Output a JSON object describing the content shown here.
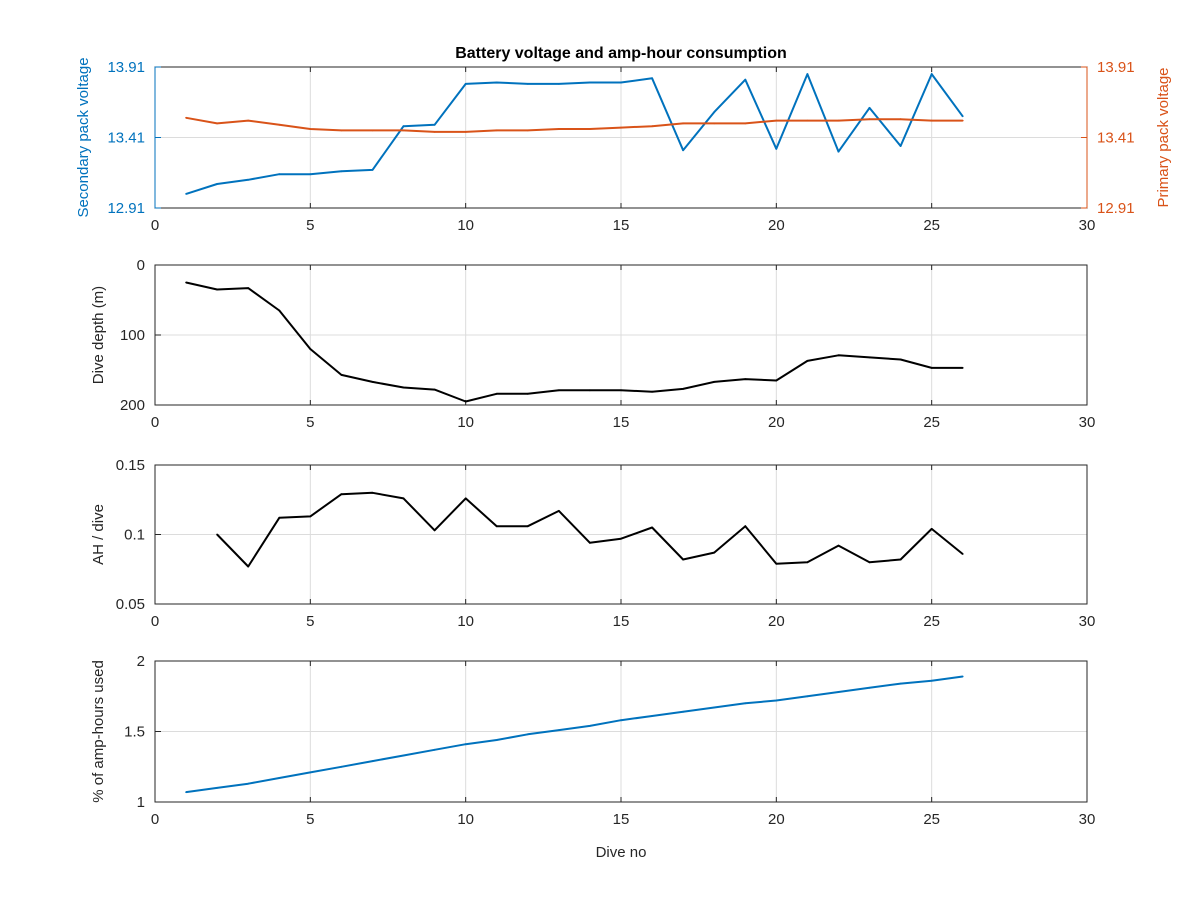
{
  "figure": {
    "title": "Battery voltage and amp-hour consumption",
    "xlabel": "Dive no"
  },
  "colors": {
    "secondary": "#0072BD",
    "primary": "#D95319",
    "depth": "#000000",
    "ah": "#000000",
    "percent": "#0072BD",
    "grid": "#dcdcdc",
    "axis": "#262626"
  },
  "chart_data": [
    {
      "type": "line",
      "title": "Battery voltage and amp-hour consumption",
      "xlabel": "",
      "xlim": [
        0,
        30
      ],
      "xticks": [
        0,
        5,
        10,
        15,
        20,
        25,
        30
      ],
      "ylabel": "Secondary pack voltage",
      "ylim": [
        12.91,
        13.91
      ],
      "yticks": [
        12.91,
        13.41,
        13.91
      ],
      "y2label": "Primary pack voltage",
      "y2lim": [
        12.91,
        13.91
      ],
      "y2ticks": [
        12.91,
        13.41,
        13.91
      ],
      "grid": true,
      "series": [
        {
          "axis": "left",
          "x": [
            1,
            2,
            3,
            4,
            5,
            6,
            7,
            8,
            9,
            10,
            11,
            12,
            13,
            14,
            15,
            16,
            17,
            18,
            19,
            20,
            21,
            22,
            23,
            24,
            25,
            26
          ],
          "values": [
            13.01,
            13.08,
            13.11,
            13.15,
            13.15,
            13.17,
            13.18,
            13.49,
            13.5,
            13.79,
            13.8,
            13.79,
            13.79,
            13.8,
            13.8,
            13.83,
            13.32,
            13.59,
            13.82,
            13.33,
            13.86,
            13.31,
            13.62,
            13.35,
            13.86,
            13.56
          ]
        },
        {
          "axis": "right",
          "x": [
            1,
            2,
            3,
            4,
            5,
            6,
            7,
            8,
            9,
            10,
            11,
            12,
            13,
            14,
            15,
            16,
            17,
            18,
            19,
            20,
            21,
            22,
            23,
            24,
            25,
            26
          ],
          "values": [
            13.55,
            13.51,
            13.53,
            13.5,
            13.47,
            13.46,
            13.46,
            13.46,
            13.45,
            13.45,
            13.46,
            13.46,
            13.47,
            13.47,
            13.48,
            13.49,
            13.51,
            13.51,
            13.51,
            13.53,
            13.53,
            13.53,
            13.54,
            13.54,
            13.53,
            13.53
          ]
        }
      ]
    },
    {
      "type": "line",
      "xlabel": "",
      "xlim": [
        0,
        30
      ],
      "xticks": [
        0,
        5,
        10,
        15,
        20,
        25,
        30
      ],
      "ylabel": "Dive depth (m)",
      "ylim": [
        0,
        200
      ],
      "yticks": [
        0,
        100,
        200
      ],
      "y_reversed": true,
      "grid": true,
      "series": [
        {
          "x": [
            1,
            2,
            3,
            4,
            5,
            6,
            7,
            8,
            9,
            10,
            11,
            12,
            13,
            14,
            15,
            16,
            17,
            18,
            19,
            20,
            21,
            22,
            23,
            24,
            25,
            26
          ],
          "values": [
            25,
            35,
            33,
            65,
            120,
            157,
            167,
            175,
            178,
            195,
            184,
            184,
            179,
            179,
            179,
            181,
            177,
            167,
            163,
            165,
            137,
            129,
            132,
            135,
            147,
            147
          ]
        }
      ]
    },
    {
      "type": "line",
      "xlabel": "",
      "xlim": [
        0,
        30
      ],
      "xticks": [
        0,
        5,
        10,
        15,
        20,
        25,
        30
      ],
      "ylabel": "AH / dive",
      "ylim": [
        0.05,
        0.15
      ],
      "yticks": [
        0.05,
        0.1,
        0.15
      ],
      "grid": true,
      "series": [
        {
          "x": [
            2,
            3,
            4,
            5,
            6,
            7,
            8,
            9,
            10,
            11,
            12,
            13,
            14,
            15,
            16,
            17,
            18,
            19,
            20,
            21,
            22,
            23,
            24,
            25,
            26
          ],
          "values": [
            0.1,
            0.077,
            0.112,
            0.113,
            0.129,
            0.13,
            0.126,
            0.103,
            0.126,
            0.106,
            0.106,
            0.117,
            0.094,
            0.097,
            0.105,
            0.082,
            0.087,
            0.106,
            0.079,
            0.08,
            0.092,
            0.08,
            0.082,
            0.104,
            0.086
          ]
        }
      ]
    },
    {
      "type": "line",
      "xlabel": "Dive no",
      "xlim": [
        0,
        30
      ],
      "xticks": [
        0,
        5,
        10,
        15,
        20,
        25,
        30
      ],
      "ylabel": "% of amp-hours used",
      "ylim": [
        1,
        2
      ],
      "yticks": [
        1,
        1.5,
        2
      ],
      "grid": true,
      "series": [
        {
          "x": [
            1,
            2,
            3,
            4,
            5,
            6,
            7,
            8,
            9,
            10,
            11,
            12,
            13,
            14,
            15,
            16,
            17,
            18,
            19,
            20,
            21,
            22,
            23,
            24,
            25,
            26
          ],
          "values": [
            1.07,
            1.1,
            1.13,
            1.17,
            1.21,
            1.25,
            1.29,
            1.33,
            1.37,
            1.41,
            1.44,
            1.48,
            1.51,
            1.54,
            1.58,
            1.61,
            1.64,
            1.67,
            1.7,
            1.72,
            1.75,
            1.78,
            1.81,
            1.84,
            1.86,
            1.89
          ]
        }
      ]
    }
  ]
}
